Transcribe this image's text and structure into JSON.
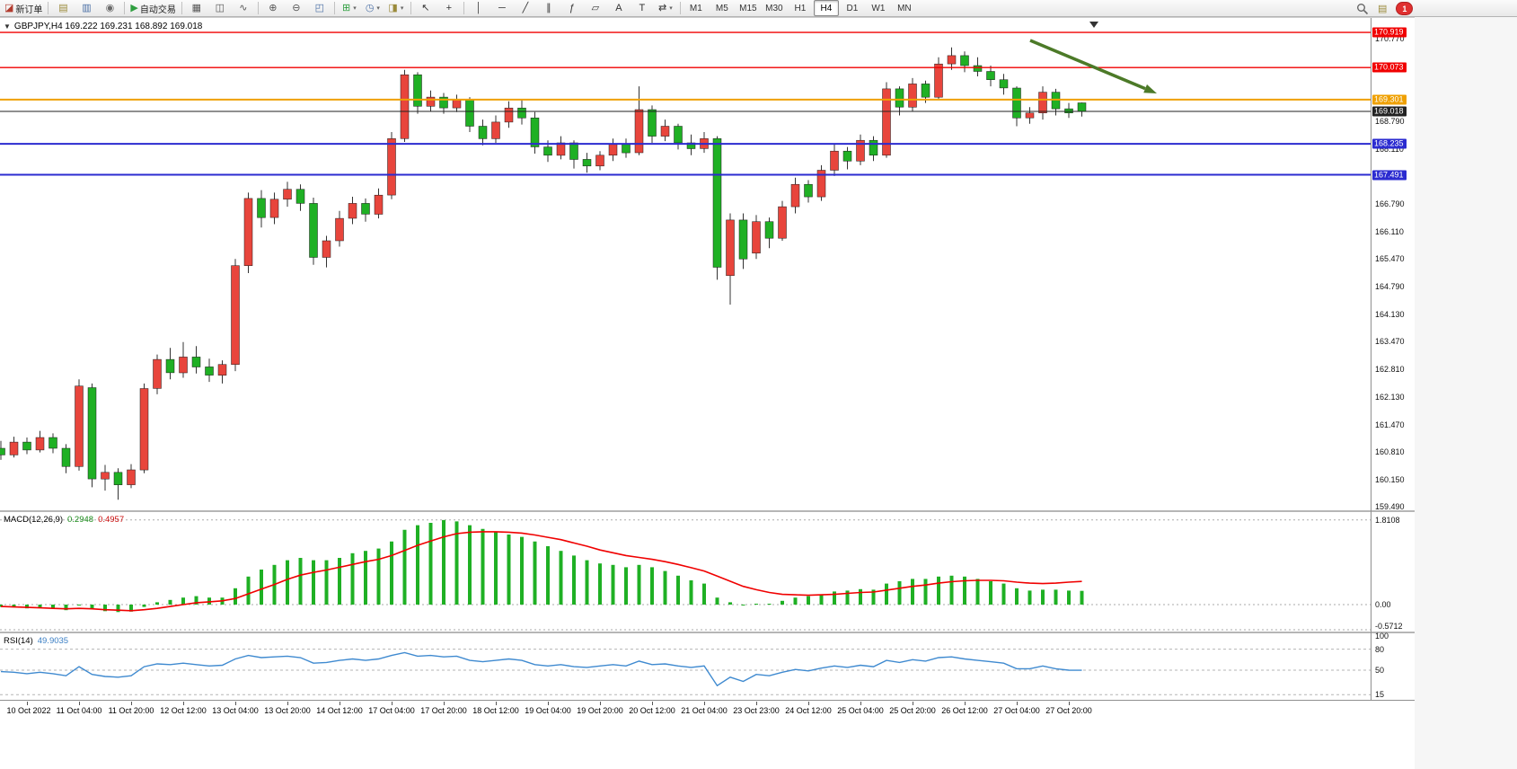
{
  "toolbar": {
    "caret_glyph": "▾",
    "left_items": [
      {
        "type": "button",
        "name": "new-order-button",
        "glyph": "◪",
        "glyph_color": "#b23b2e",
        "label": "新订单"
      },
      {
        "type": "sep"
      },
      {
        "type": "button",
        "name": "profiles-button",
        "glyph": "▤",
        "glyph_color": "#9a8a3a"
      },
      {
        "type": "button",
        "name": "data-window-button",
        "glyph": "▥",
        "glyph_color": "#4a6fa5"
      },
      {
        "type": "button",
        "name": "sound-alerts-button",
        "glyph": "◉",
        "glyph_color": "#6a6a6a"
      },
      {
        "type": "sep"
      },
      {
        "type": "button",
        "name": "autotrading-button",
        "glyph": "▶",
        "glyph_color": "#2e9e3f",
        "label": "自动交易"
      },
      {
        "type": "sep"
      },
      {
        "type": "button",
        "name": "bar-chart-button",
        "glyph": "▦",
        "glyph_color": "#555555"
      },
      {
        "type": "button",
        "name": "candlestick-chart-button",
        "glyph": "◫",
        "glyph_color": "#555555"
      },
      {
        "type": "button",
        "name": "line-chart-button",
        "glyph": "∿",
        "glyph_color": "#555555"
      },
      {
        "type": "sep"
      },
      {
        "type": "button",
        "name": "zoom-in-button",
        "glyph": "⊕",
        "glyph_color": "#555555"
      },
      {
        "type": "button",
        "name": "zoom-out-button",
        "glyph": "⊖",
        "glyph_color": "#555555"
      },
      {
        "type": "button",
        "name": "tile-windows-button",
        "glyph": "◰",
        "glyph_color": "#4a6fa5"
      },
      {
        "type": "sep"
      },
      {
        "type": "button",
        "name": "indicators-button",
        "glyph": "⊞",
        "glyph_color": "#2e9e3f",
        "caret": true
      },
      {
        "type": "button",
        "name": "periods-button",
        "glyph": "◷",
        "glyph_color": "#4a6fa5",
        "caret": true
      },
      {
        "type": "button",
        "name": "templates-button",
        "glyph": "◨",
        "glyph_color": "#9a8a3a",
        "caret": true
      },
      {
        "type": "sep"
      },
      {
        "type": "button",
        "name": "cursor-button",
        "glyph": "↖",
        "glyph_color": "#333333"
      },
      {
        "type": "button",
        "name": "crosshair-button",
        "glyph": "+",
        "glyph_color": "#333333"
      },
      {
        "type": "sep"
      },
      {
        "type": "button",
        "name": "vertical-line-button",
        "glyph": "│",
        "glyph_color": "#333333"
      },
      {
        "type": "button",
        "name": "horizontal-line-button",
        "glyph": "─",
        "glyph_color": "#333333"
      },
      {
        "type": "button",
        "name": "trendline-button",
        "glyph": "╱",
        "glyph_color": "#333333"
      },
      {
        "type": "button",
        "name": "channel-button",
        "glyph": "∥",
        "glyph_color": "#333333"
      },
      {
        "type": "button",
        "name": "fibonacci-button",
        "glyph": "ƒ",
        "glyph_color": "#333333"
      },
      {
        "type": "button",
        "name": "shapes-button",
        "glyph": "▱",
        "glyph_color": "#333333"
      },
      {
        "type": "button",
        "name": "text-button",
        "glyph": "A",
        "glyph_color": "#333333"
      },
      {
        "type": "button",
        "name": "text-label-button",
        "glyph": "T",
        "glyph_color": "#333333"
      },
      {
        "type": "button",
        "name": "arrows-button",
        "glyph": "⇄",
        "glyph_color": "#333333",
        "caret": true
      },
      {
        "type": "sep"
      }
    ],
    "timeframes": {
      "options": [
        "M1",
        "M5",
        "M15",
        "M30",
        "H1",
        "H4",
        "D1",
        "W1",
        "MN"
      ],
      "active": "H4"
    },
    "notification_count": "1"
  },
  "chart": {
    "title_icon": "▼",
    "title_text": "GBPJPY,H4  169.222 169.231 168.892 169.018",
    "up_color": "#e8453c",
    "down_color": "#1fb024",
    "wick_color": "#333333",
    "hlines": [
      {
        "price": 170.919,
        "color": "#f00000",
        "label": "170.919",
        "width": 1.4
      },
      {
        "price": 170.073,
        "color": "#f00000",
        "label": "170.073",
        "width": 1.4
      },
      {
        "price": 169.301,
        "color": "#efa000",
        "label": "169.301",
        "width": 2
      },
      {
        "price": 169.018,
        "color": "#222222",
        "label": "169.018",
        "width": 1
      },
      {
        "price": 168.235,
        "color": "#2b2bd0",
        "label": "168.235",
        "width": 2
      },
      {
        "price": 167.491,
        "color": "#2b2bd0",
        "label": "167.491",
        "width": 2
      }
    ],
    "price_axis_labels": [
      "170.770",
      "168.790",
      "168.110",
      "166.790",
      "166.110",
      "165.470",
      "164.790",
      "164.130",
      "163.470",
      "162.810",
      "162.130",
      "161.470",
      "160.810",
      "160.150",
      "159.490"
    ],
    "annotation_arrow": {
      "color": "#4c7a28"
    }
  },
  "chart_data": [
    {
      "type": "candlestick",
      "symbol": "GBPJPY",
      "timeframe": "H4",
      "ylim": [
        159.45,
        171.27
      ],
      "x_labels": [
        "10 Oct 2022",
        "11 Oct 04:00",
        "11 Oct 20:00",
        "12 Oct 12:00",
        "13 Oct 04:00",
        "13 Oct 20:00",
        "14 Oct 12:00",
        "17 Oct 04:00",
        "17 Oct 20:00",
        "18 Oct 12:00",
        "19 Oct 04:00",
        "19 Oct 20:00",
        "20 Oct 12:00",
        "21 Oct 04:00",
        "23 Oct 23:00",
        "24 Oct 12:00",
        "25 Oct 04:00",
        "25 Oct 20:00",
        "26 Oct 12:00",
        "27 Oct 04:00",
        "27 Oct 20:00"
      ],
      "current_price": 169.018,
      "candles": [
        [
          160.9,
          161.08,
          160.62,
          160.74
        ],
        [
          160.74,
          161.18,
          160.68,
          161.05
        ],
        [
          161.05,
          161.16,
          160.76,
          160.86
        ],
        [
          160.86,
          161.32,
          160.8,
          161.16
        ],
        [
          161.16,
          161.26,
          160.78,
          160.9
        ],
        [
          160.9,
          161.0,
          160.3,
          160.46
        ],
        [
          160.46,
          162.56,
          160.36,
          162.4
        ],
        [
          162.36,
          162.46,
          159.96,
          160.16
        ],
        [
          160.16,
          160.5,
          159.88,
          160.32
        ],
        [
          160.32,
          160.42,
          159.66,
          160.02
        ],
        [
          160.02,
          160.52,
          159.94,
          160.38
        ],
        [
          160.38,
          162.46,
          160.3,
          162.34
        ],
        [
          162.34,
          163.16,
          162.2,
          163.04
        ],
        [
          163.04,
          163.32,
          162.56,
          162.72
        ],
        [
          162.72,
          163.46,
          162.6,
          163.1
        ],
        [
          163.1,
          163.36,
          162.7,
          162.86
        ],
        [
          162.86,
          163.06,
          162.5,
          162.66
        ],
        [
          162.66,
          163.02,
          162.46,
          162.92
        ],
        [
          162.92,
          165.46,
          162.76,
          165.3
        ],
        [
          165.3,
          167.06,
          165.12,
          166.92
        ],
        [
          166.92,
          167.12,
          166.22,
          166.46
        ],
        [
          166.46,
          167.06,
          166.3,
          166.9
        ],
        [
          166.9,
          167.32,
          166.72,
          167.14
        ],
        [
          167.14,
          167.26,
          166.62,
          166.8
        ],
        [
          166.8,
          166.94,
          165.32,
          165.5
        ],
        [
          165.5,
          166.02,
          165.26,
          165.9
        ],
        [
          165.9,
          166.62,
          165.76,
          166.44
        ],
        [
          166.44,
          166.96,
          166.3,
          166.8
        ],
        [
          166.8,
          166.92,
          166.36,
          166.54
        ],
        [
          166.54,
          167.16,
          166.44,
          167.0
        ],
        [
          167.0,
          168.52,
          166.9,
          168.36
        ],
        [
          168.36,
          170.02,
          168.28,
          169.9
        ],
        [
          169.9,
          169.96,
          168.96,
          169.14
        ],
        [
          169.14,
          169.52,
          169.02,
          169.36
        ],
        [
          169.36,
          169.46,
          168.96,
          169.1
        ],
        [
          169.1,
          169.42,
          169.0,
          169.3
        ],
        [
          169.3,
          169.36,
          168.52,
          168.66
        ],
        [
          168.66,
          168.82,
          168.2,
          168.36
        ],
        [
          168.36,
          168.92,
          168.26,
          168.76
        ],
        [
          168.76,
          169.26,
          168.62,
          169.1
        ],
        [
          169.1,
          169.32,
          168.7,
          168.86
        ],
        [
          168.86,
          169.0,
          168.0,
          168.16
        ],
        [
          168.16,
          168.32,
          167.8,
          167.96
        ],
        [
          167.96,
          168.42,
          167.86,
          168.26
        ],
        [
          168.26,
          168.32,
          167.64,
          167.86
        ],
        [
          167.86,
          168.02,
          167.54,
          167.7
        ],
        [
          167.7,
          168.06,
          167.6,
          167.96
        ],
        [
          167.96,
          168.36,
          167.82,
          168.24
        ],
        [
          168.24,
          168.36,
          167.9,
          168.02
        ],
        [
          168.02,
          169.62,
          167.96,
          169.06
        ],
        [
          169.06,
          169.16,
          168.26,
          168.42
        ],
        [
          168.42,
          168.82,
          168.3,
          168.66
        ],
        [
          168.66,
          168.72,
          168.1,
          168.26
        ],
        [
          168.26,
          168.46,
          167.96,
          168.12
        ],
        [
          168.12,
          168.52,
          168.02,
          168.36
        ],
        [
          168.36,
          168.42,
          164.96,
          165.26
        ],
        [
          165.06,
          166.56,
          164.36,
          166.4
        ],
        [
          166.4,
          166.56,
          165.22,
          165.46
        ],
        [
          165.6,
          166.52,
          165.46,
          166.36
        ],
        [
          166.36,
          166.46,
          165.72,
          165.96
        ],
        [
          165.96,
          166.86,
          165.9,
          166.72
        ],
        [
          166.72,
          167.42,
          166.56,
          167.26
        ],
        [
          167.26,
          167.36,
          166.82,
          166.96
        ],
        [
          166.96,
          167.72,
          166.86,
          167.6
        ],
        [
          167.6,
          168.22,
          167.46,
          168.06
        ],
        [
          168.06,
          168.16,
          167.62,
          167.82
        ],
        [
          167.82,
          168.46,
          167.72,
          168.32
        ],
        [
          168.32,
          168.42,
          167.82,
          167.96
        ],
        [
          167.96,
          169.72,
          167.9,
          169.56
        ],
        [
          169.56,
          169.62,
          168.92,
          169.12
        ],
        [
          169.12,
          169.82,
          169.02,
          169.68
        ],
        [
          169.68,
          169.76,
          169.22,
          169.36
        ],
        [
          169.36,
          170.32,
          169.3,
          170.16
        ],
        [
          170.16,
          170.56,
          170.02,
          170.36
        ],
        [
          170.36,
          170.46,
          169.96,
          170.12
        ],
        [
          170.12,
          170.32,
          169.86,
          169.98
        ],
        [
          169.98,
          170.12,
          169.62,
          169.78
        ],
        [
          169.78,
          169.92,
          169.42,
          169.58
        ],
        [
          169.58,
          169.62,
          168.66,
          168.86
        ],
        [
          168.86,
          169.12,
          168.72,
          168.98
        ],
        [
          168.98,
          169.62,
          168.82,
          169.48
        ],
        [
          169.48,
          169.56,
          168.92,
          169.08
        ],
        [
          169.08,
          169.22,
          168.86,
          168.98
        ],
        [
          169.222,
          169.231,
          168.892,
          169.018
        ]
      ]
    },
    {
      "type": "bar",
      "name": "MACD(12,26,9)",
      "current_value": "0.2948",
      "current_signal": "0.4957",
      "axis_labels": [
        "1.8108",
        "0.00",
        "-0.5712"
      ],
      "ylim": [
        -0.577,
        1.98
      ],
      "bar_color": "#1fb024",
      "signal_color": "#f00000",
      "values": [
        -0.05,
        -0.06,
        -0.08,
        -0.07,
        -0.09,
        -0.12,
        -0.02,
        -0.1,
        -0.14,
        -0.16,
        -0.15,
        -0.05,
        0.05,
        0.1,
        0.15,
        0.18,
        0.15,
        0.15,
        0.35,
        0.6,
        0.75,
        0.85,
        0.95,
        1.0,
        0.95,
        0.95,
        1.0,
        1.1,
        1.15,
        1.2,
        1.35,
        1.6,
        1.7,
        1.75,
        1.81,
        1.78,
        1.7,
        1.62,
        1.55,
        1.5,
        1.45,
        1.35,
        1.25,
        1.15,
        1.05,
        0.95,
        0.88,
        0.85,
        0.8,
        0.85,
        0.8,
        0.72,
        0.62,
        0.52,
        0.45,
        0.15,
        0.05,
        -0.02,
        0.02,
        0.02,
        0.08,
        0.15,
        0.18,
        0.22,
        0.28,
        0.3,
        0.33,
        0.32,
        0.45,
        0.5,
        0.55,
        0.55,
        0.6,
        0.62,
        0.6,
        0.55,
        0.5,
        0.45,
        0.35,
        0.3,
        0.32,
        0.32,
        0.3,
        0.2948
      ],
      "signal": [
        -0.04,
        -0.05,
        -0.06,
        -0.07,
        -0.08,
        -0.09,
        -0.08,
        -0.09,
        -0.11,
        -0.12,
        -0.13,
        -0.11,
        -0.08,
        -0.04,
        0.0,
        0.04,
        0.06,
        0.08,
        0.13,
        0.23,
        0.33,
        0.43,
        0.54,
        0.63,
        0.69,
        0.74,
        0.8,
        0.86,
        0.92,
        0.97,
        1.05,
        1.16,
        1.27,
        1.36,
        1.45,
        1.52,
        1.55,
        1.56,
        1.56,
        1.55,
        1.53,
        1.49,
        1.44,
        1.39,
        1.32,
        1.25,
        1.17,
        1.11,
        1.05,
        1.01,
        0.97,
        0.92,
        0.86,
        0.79,
        0.72,
        0.61,
        0.5,
        0.39,
        0.32,
        0.26,
        0.22,
        0.21,
        0.2,
        0.21,
        0.22,
        0.24,
        0.26,
        0.27,
        0.31,
        0.35,
        0.39,
        0.42,
        0.46,
        0.49,
        0.51,
        0.52,
        0.52,
        0.51,
        0.48,
        0.46,
        0.45,
        0.46,
        0.48,
        0.4957
      ]
    },
    {
      "type": "line",
      "name": "RSI(14)",
      "current_value": "49.9035",
      "axis_labels": [
        "100",
        "80",
        "50",
        "15"
      ],
      "levels": [
        80,
        50,
        15
      ],
      "ylim": [
        0,
        100
      ],
      "line_color": "#3f8ad0",
      "values": [
        48,
        47,
        45,
        47,
        45,
        42,
        55,
        44,
        41,
        40,
        42,
        55,
        59,
        58,
        60,
        58,
        56,
        57,
        66,
        71,
        68,
        69,
        70,
        68,
        60,
        61,
        64,
        66,
        64,
        66,
        71,
        75,
        70,
        71,
        69,
        70,
        64,
        62,
        64,
        66,
        64,
        58,
        56,
        58,
        55,
        54,
        56,
        58,
        56,
        63,
        58,
        59,
        56,
        54,
        56,
        28,
        40,
        34,
        44,
        42,
        47,
        51,
        49,
        53,
        56,
        54,
        57,
        55,
        64,
        61,
        65,
        63,
        68,
        69,
        66,
        64,
        62,
        60,
        52,
        52,
        56,
        52,
        50,
        49.9
      ]
    }
  ]
}
